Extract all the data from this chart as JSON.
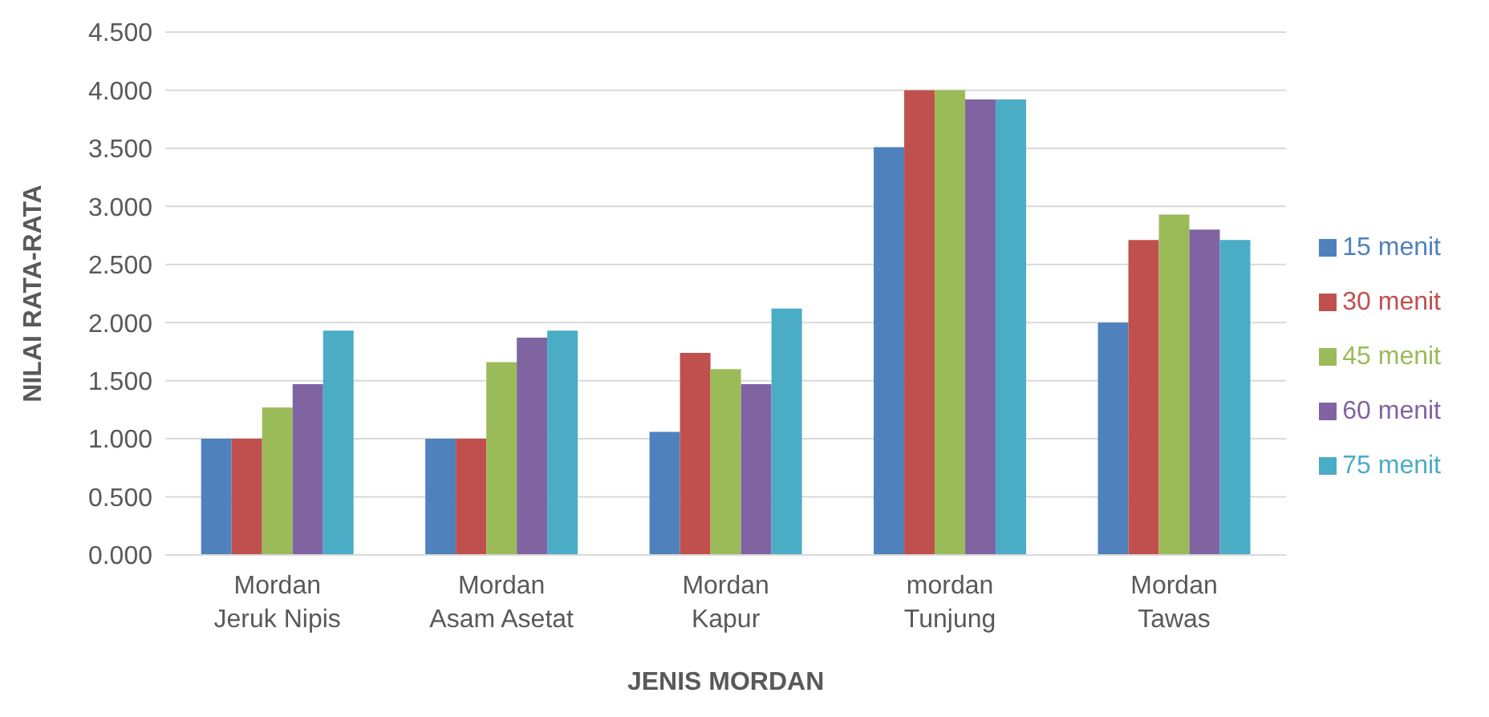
{
  "chart_data": {
    "type": "bar",
    "xlabel": "JENIS MORDAN",
    "ylabel": "NILAI RATA-RATA",
    "categories": [
      "Mordan Jeruk Nipis",
      "Mordan Asam Asetat",
      "Mordan Kapur",
      "mordan Tunjung",
      "Mordan Tawas"
    ],
    "series": [
      {
        "name": "15 menit",
        "color": "#4f81bd",
        "values": [
          1.0,
          1.0,
          1.06,
          3.51,
          2.0
        ]
      },
      {
        "name": "30 menit",
        "color": "#c0504d",
        "values": [
          1.0,
          1.0,
          1.74,
          4.0,
          2.71
        ]
      },
      {
        "name": "45 menit",
        "color": "#9bbb59",
        "values": [
          1.27,
          1.66,
          1.6,
          4.0,
          2.93
        ]
      },
      {
        "name": "60 menit",
        "color": "#8064a2",
        "values": [
          1.47,
          1.87,
          1.47,
          3.92,
          2.8
        ]
      },
      {
        "name": "75 menit",
        "color": "#4bacc6",
        "values": [
          1.93,
          1.93,
          2.12,
          3.92,
          2.71
        ]
      }
    ],
    "ylim": [
      0,
      4.5
    ],
    "yticks": [
      {
        "value": 0,
        "label": "0.000"
      },
      {
        "value": 0.5,
        "label": "0.500"
      },
      {
        "value": 1,
        "label": "1.000"
      },
      {
        "value": 1.5,
        "label": "1.500"
      },
      {
        "value": 2,
        "label": "2.000"
      },
      {
        "value": 2.5,
        "label": "2.500"
      },
      {
        "value": 3,
        "label": "3.000"
      },
      {
        "value": 3.5,
        "label": "3.500"
      },
      {
        "value": 4,
        "label": "4.000"
      },
      {
        "value": 4.5,
        "label": "4.500"
      }
    ],
    "grid": "y",
    "legend": "right"
  }
}
